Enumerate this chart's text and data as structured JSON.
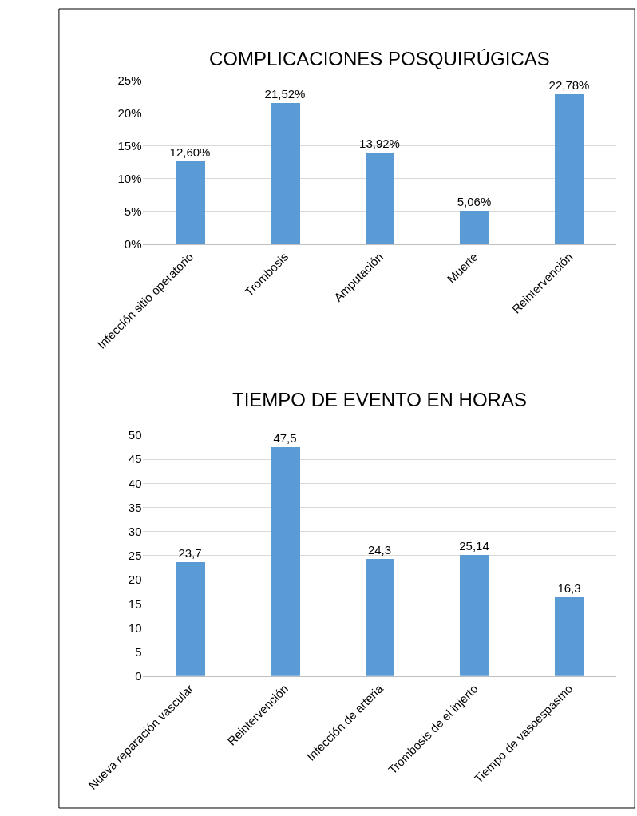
{
  "chart_data": [
    {
      "type": "bar",
      "title": "COMPLICACIONES POSQUIRÚGICAS",
      "categories": [
        "Infección sitio operatorio",
        "Trombosis",
        "Amputación",
        "Muerte",
        "Reintervención"
      ],
      "values": [
        12.6,
        21.52,
        13.92,
        5.06,
        22.78
      ],
      "value_labels": [
        "12,60%",
        "21,52%",
        "13,92%",
        "5,06%",
        "22,78%"
      ],
      "color": "#5b9bd5",
      "ylim": [
        0,
        25
      ],
      "yticks": [
        {
          "value": 0,
          "label": "0%"
        },
        {
          "value": 5,
          "label": "5%"
        },
        {
          "value": 10,
          "label": "10%"
        },
        {
          "value": 15,
          "label": "15%"
        },
        {
          "value": 20,
          "label": "20%"
        },
        {
          "value": 25,
          "label": "25%"
        }
      ],
      "grid": "y"
    },
    {
      "type": "bar",
      "title": "TIEMPO DE EVENTO EN HORAS",
      "categories": [
        "Nueva reparación vascular",
        "Reintervención",
        "Infección de arteria",
        "Trombosis de el injerto",
        "Tiempo de vasoespasmo"
      ],
      "values": [
        23.7,
        47.5,
        24.3,
        25.14,
        16.3
      ],
      "value_labels": [
        "23,7",
        "47,5",
        "24,3",
        "25,14",
        "16,3"
      ],
      "color": "#5b9bd5",
      "ylim": [
        0,
        50
      ],
      "yticks": [
        0,
        5,
        10,
        15,
        20,
        25,
        30,
        35,
        40,
        45,
        50
      ],
      "grid": "y"
    }
  ]
}
